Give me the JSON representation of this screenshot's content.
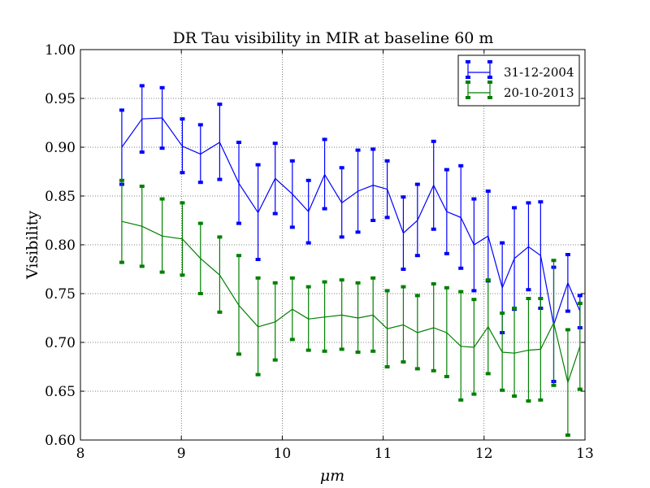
{
  "chart_data": {
    "type": "line",
    "title": "DR Tau visibility in MIR at baseline 60 m",
    "xlabel": "μm",
    "ylabel": "Visibility",
    "xlim": [
      8,
      13
    ],
    "ylim": [
      0.6,
      1.0
    ],
    "xticks": [
      "8",
      "9",
      "10",
      "11",
      "12",
      "13"
    ],
    "yticks": [
      "0.60",
      "0.65",
      "0.70",
      "0.75",
      "0.80",
      "0.85",
      "0.90",
      "0.95",
      "1.00"
    ],
    "grid": true,
    "legend_position": "top-right",
    "x": [
      8.41,
      8.61,
      8.81,
      9.01,
      9.19,
      9.38,
      9.57,
      9.76,
      9.93,
      10.1,
      10.26,
      10.42,
      10.59,
      10.75,
      10.9,
      11.04,
      11.2,
      11.34,
      11.5,
      11.63,
      11.77,
      11.9,
      12.04,
      12.18,
      12.3,
      12.44,
      12.56,
      12.69,
      12.83,
      12.95
    ],
    "series": [
      {
        "name": "31-12-2004",
        "color": "#0000ff",
        "values": [
          0.9,
          0.929,
          0.93,
          0.901,
          0.893,
          0.905,
          0.863,
          0.833,
          0.868,
          0.852,
          0.834,
          0.872,
          0.843,
          0.855,
          0.861,
          0.857,
          0.812,
          0.825,
          0.861,
          0.834,
          0.828,
          0.8,
          0.809,
          0.756,
          0.786,
          0.798,
          0.789,
          0.718,
          0.761,
          0.732
        ],
        "lower": [
          0.862,
          0.895,
          0.899,
          0.874,
          0.864,
          0.867,
          0.822,
          0.785,
          0.832,
          0.818,
          0.802,
          0.837,
          0.808,
          0.813,
          0.825,
          0.828,
          0.775,
          0.789,
          0.816,
          0.791,
          0.776,
          0.753,
          0.763,
          0.71,
          0.734,
          0.754,
          0.735,
          0.66,
          0.732,
          0.715
        ],
        "upper": [
          0.938,
          0.963,
          0.961,
          0.929,
          0.923,
          0.944,
          0.905,
          0.882,
          0.904,
          0.886,
          0.866,
          0.908,
          0.879,
          0.897,
          0.898,
          0.886,
          0.849,
          0.862,
          0.906,
          0.877,
          0.881,
          0.847,
          0.855,
          0.802,
          0.838,
          0.843,
          0.844,
          0.777,
          0.79,
          0.748
        ]
      },
      {
        "name": "20-10-2013",
        "color": "#008000",
        "values": [
          0.824,
          0.819,
          0.809,
          0.806,
          0.786,
          0.769,
          0.738,
          0.716,
          0.721,
          0.734,
          0.724,
          0.726,
          0.728,
          0.725,
          0.728,
          0.714,
          0.718,
          0.71,
          0.715,
          0.71,
          0.696,
          0.695,
          0.716,
          0.69,
          0.689,
          0.692,
          0.693,
          0.72,
          0.659,
          0.696
        ],
        "lower": [
          0.782,
          0.778,
          0.772,
          0.769,
          0.75,
          0.731,
          0.688,
          0.667,
          0.682,
          0.703,
          0.692,
          0.691,
          0.693,
          0.69,
          0.691,
          0.675,
          0.68,
          0.673,
          0.671,
          0.665,
          0.641,
          0.647,
          0.668,
          0.651,
          0.645,
          0.64,
          0.641,
          0.656,
          0.605,
          0.652
        ],
        "upper": [
          0.866,
          0.86,
          0.847,
          0.843,
          0.822,
          0.808,
          0.789,
          0.766,
          0.761,
          0.766,
          0.757,
          0.762,
          0.764,
          0.761,
          0.766,
          0.753,
          0.757,
          0.748,
          0.76,
          0.756,
          0.752,
          0.744,
          0.764,
          0.73,
          0.735,
          0.745,
          0.745,
          0.784,
          0.713,
          0.74
        ]
      }
    ]
  }
}
